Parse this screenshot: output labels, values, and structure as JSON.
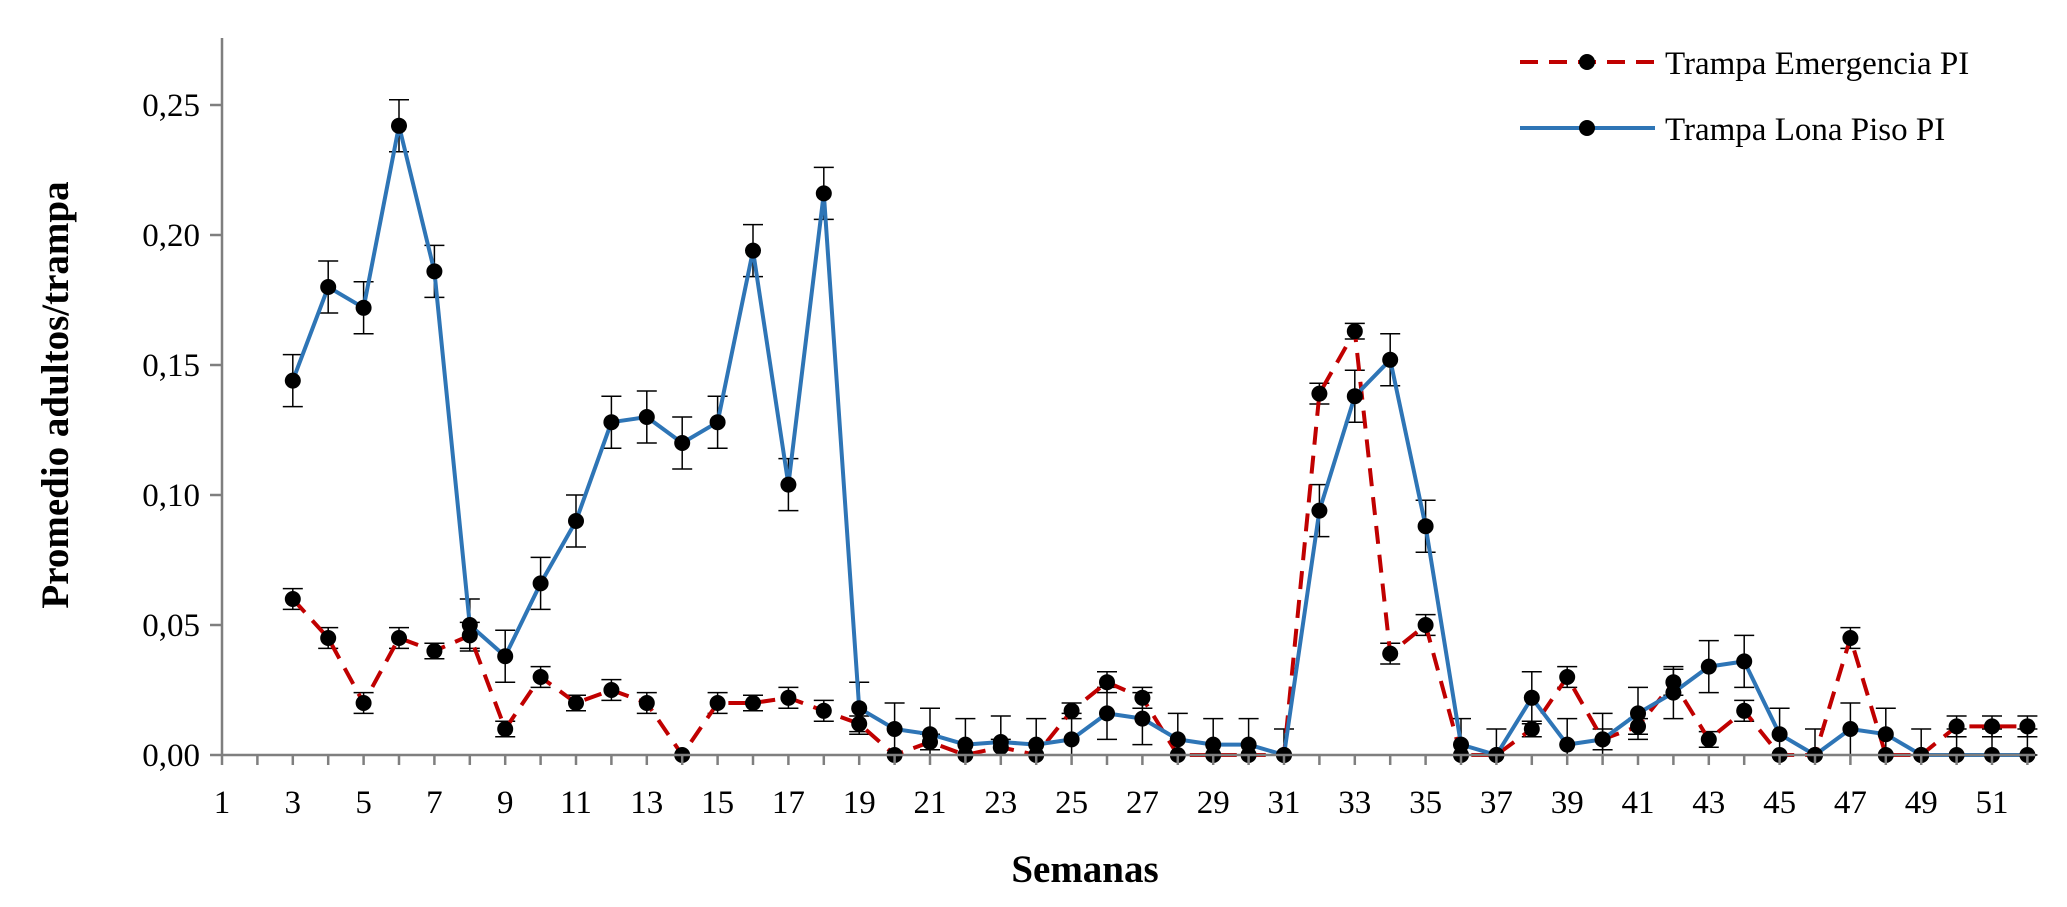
{
  "chart_data": {
    "type": "line",
    "xlabel": "Semanas",
    "ylabel": "Promedio adultos/trampa",
    "xlim": [
      1,
      52
    ],
    "ylim": [
      0,
      0.27
    ],
    "x_ticks": [
      "1",
      "3",
      "5",
      "7",
      "9",
      "11",
      "13",
      "15",
      "17",
      "19",
      "21",
      "23",
      "25",
      "27",
      "29",
      "31",
      "33",
      "35",
      "37",
      "39",
      "41",
      "43",
      "45",
      "47",
      "49",
      "51"
    ],
    "y_ticks": [
      "0,00",
      "0,05",
      "0,10",
      "0,15",
      "0,20",
      "0,25"
    ],
    "grid": false,
    "legend_position": "top-right",
    "series": [
      {
        "name": "Trampa Emergencia PI",
        "color": "#C00000",
        "style": "dashed",
        "x": [
          3,
          4,
          5,
          6,
          7,
          8,
          9,
          10,
          11,
          12,
          13,
          14,
          15,
          16,
          17,
          18,
          19,
          20,
          21,
          22,
          23,
          24,
          25,
          26,
          27,
          28,
          29,
          30,
          31,
          32,
          33,
          34,
          35,
          36,
          37,
          38,
          39,
          40,
          41,
          42,
          43,
          44,
          45,
          46,
          47,
          48,
          49,
          50,
          51,
          52
        ],
        "values": [
          0.06,
          0.045,
          0.02,
          0.045,
          0.04,
          0.046,
          0.01,
          0.03,
          0.02,
          0.025,
          0.02,
          0.0,
          0.02,
          0.02,
          0.022,
          0.017,
          0.012,
          0.0,
          0.005,
          0.0,
          0.003,
          0.0,
          0.017,
          0.028,
          0.022,
          0.0,
          0.0,
          0.0,
          0.0,
          0.139,
          0.163,
          0.039,
          0.05,
          0.0,
          0.0,
          0.01,
          0.03,
          0.006,
          0.011,
          0.028,
          0.006,
          0.017,
          0.0,
          0.0,
          0.045,
          0.0,
          0.0,
          0.011,
          0.011,
          0.011
        ],
        "errors": [
          0.004,
          0.004,
          0.004,
          0.004,
          0.003,
          0.005,
          0.003,
          0.004,
          0.003,
          0.004,
          0.004,
          0.0,
          0.004,
          0.003,
          0.004,
          0.004,
          0.003,
          0.0,
          0.003,
          0.0,
          0.003,
          0.0,
          0.003,
          0.004,
          0.004,
          0.0,
          0.0,
          0.0,
          0.0,
          0.004,
          0.003,
          0.004,
          0.004,
          0.0,
          0.0,
          0.003,
          0.004,
          0.004,
          0.003,
          0.005,
          0.003,
          0.004,
          0.0,
          0.0,
          0.004,
          0.0,
          0.0,
          0.004,
          0.004,
          0.004
        ]
      },
      {
        "name": "Trampa Lona Piso PI",
        "color": "#2E75B6",
        "style": "solid",
        "x": [
          3,
          4,
          5,
          6,
          7,
          8,
          9,
          10,
          11,
          12,
          13,
          14,
          15,
          16,
          17,
          18,
          19,
          20,
          21,
          22,
          23,
          24,
          25,
          26,
          27,
          28,
          29,
          30,
          31,
          32,
          33,
          34,
          35,
          36,
          37,
          38,
          39,
          40,
          41,
          42,
          43,
          44,
          45,
          46,
          47,
          48,
          49,
          50,
          51,
          52
        ],
        "values": [
          0.144,
          0.18,
          0.172,
          0.242,
          0.186,
          0.05,
          0.038,
          0.066,
          0.09,
          0.128,
          0.13,
          0.12,
          0.128,
          0.194,
          0.104,
          0.216,
          0.018,
          0.01,
          0.008,
          0.004,
          0.005,
          0.004,
          0.006,
          0.016,
          0.014,
          0.006,
          0.004,
          0.004,
          0.0,
          0.094,
          0.138,
          0.152,
          0.088,
          0.004,
          0.0,
          0.022,
          0.004,
          0.006,
          0.016,
          0.024,
          0.034,
          0.036,
          0.008,
          0.0,
          0.01,
          0.008,
          0.0,
          0.0,
          0.0,
          0.0
        ],
        "errors": [
          0.01,
          0.01,
          0.01,
          0.01,
          0.01,
          0.01,
          0.01,
          0.01,
          0.01,
          0.01,
          0.01,
          0.01,
          0.01,
          0.01,
          0.01,
          0.01,
          0.01,
          0.01,
          0.01,
          0.01,
          0.01,
          0.01,
          0.01,
          0.01,
          0.01,
          0.01,
          0.01,
          0.01,
          0.01,
          0.01,
          0.01,
          0.01,
          0.01,
          0.01,
          0.01,
          0.01,
          0.01,
          0.01,
          0.01,
          0.01,
          0.01,
          0.01,
          0.01,
          0.01,
          0.01,
          0.01,
          0.01,
          0.01,
          0.01,
          0.01
        ]
      }
    ]
  }
}
